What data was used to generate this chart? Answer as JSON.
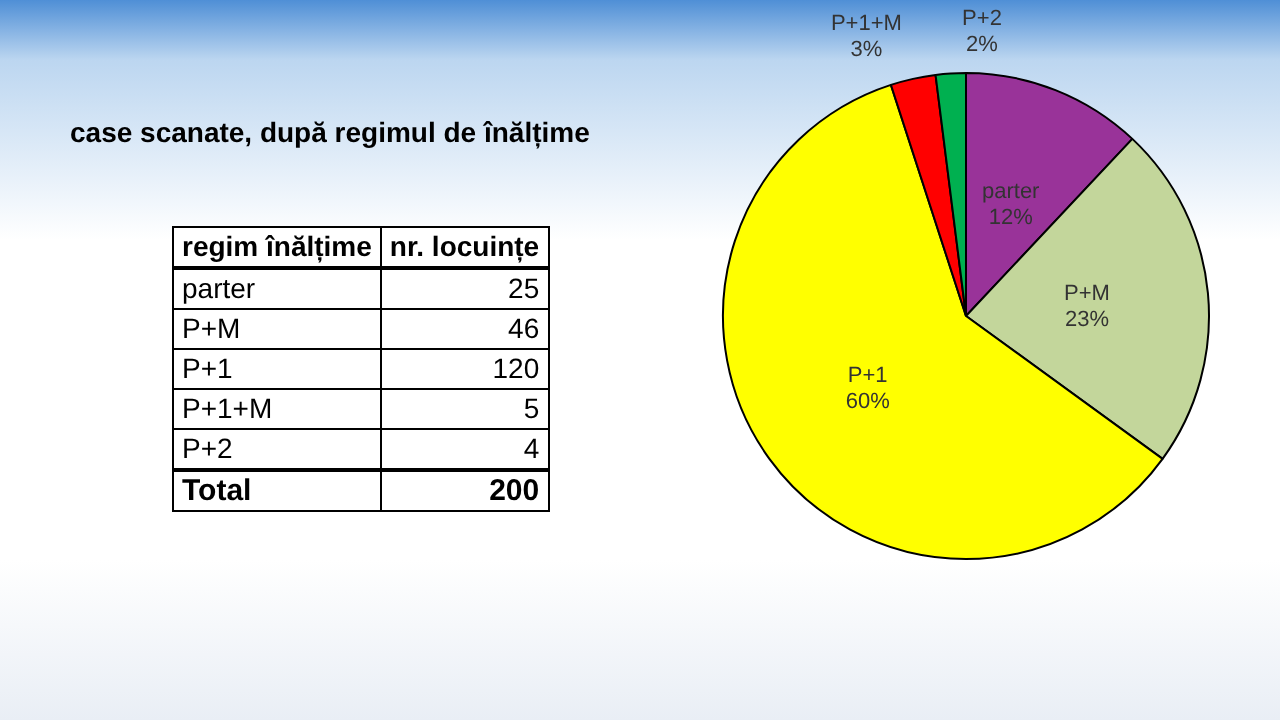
{
  "chart_data": [
    {
      "type": "other",
      "categories": [
        "parter",
        "P+M",
        "P+1",
        "P+1+M",
        "P+2"
      ],
      "values": [
        25,
        46,
        120,
        5,
        4
      ],
      "data_labels": true,
      "annotations": [
        "regim înălțime",
        "nr. locuințe",
        "Total"
      ],
      "totals": [
        "200"
      ]
    },
    {
      "type": "pie",
      "title": "case scanate, după regimul de înălțime",
      "categories": [
        "parter",
        "P+M",
        "P+1",
        "P+1+M",
        "P+2"
      ],
      "values": [
        12,
        23,
        60,
        3,
        2
      ],
      "value_labels": [
        "12%",
        "23%",
        "60%",
        "3%",
        "2%"
      ],
      "colors": [
        "#993399",
        "#c3d69b",
        "#ffff00",
        "#ff0000",
        "#00b050"
      ],
      "legend": false
    }
  ]
}
